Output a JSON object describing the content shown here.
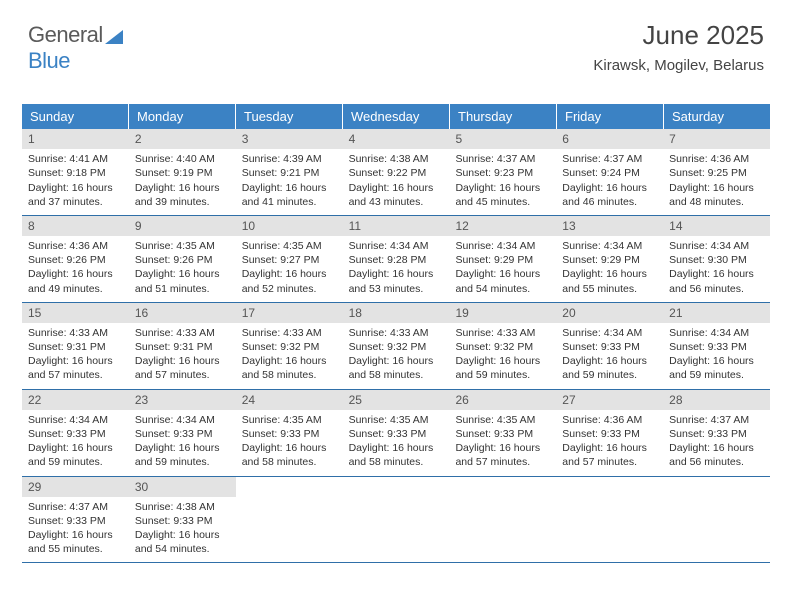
{
  "brand": {
    "part1": "General",
    "part2": "Blue"
  },
  "title": "June 2025",
  "location": "Kirawsk, Mogilev, Belarus",
  "colors": {
    "header_bg": "#3b82c4",
    "header_text": "#ffffff",
    "daynum_bg": "#e3e3e3",
    "week_border": "#2f6fa8",
    "body_text": "#333333",
    "brand_gray": "#5a5a5a",
    "brand_blue": "#3b82c4",
    "page_bg": "#ffffff"
  },
  "fonts": {
    "title_size_pt": 20,
    "location_size_pt": 11,
    "header_size_pt": 10,
    "daynum_size_pt": 9,
    "body_size_pt": 8
  },
  "weekdays": [
    "Sunday",
    "Monday",
    "Tuesday",
    "Wednesday",
    "Thursday",
    "Friday",
    "Saturday"
  ],
  "days": [
    {
      "n": "1",
      "sunrise": "4:41 AM",
      "sunset": "9:18 PM",
      "daylight": "16 hours and 37 minutes."
    },
    {
      "n": "2",
      "sunrise": "4:40 AM",
      "sunset": "9:19 PM",
      "daylight": "16 hours and 39 minutes."
    },
    {
      "n": "3",
      "sunrise": "4:39 AM",
      "sunset": "9:21 PM",
      "daylight": "16 hours and 41 minutes."
    },
    {
      "n": "4",
      "sunrise": "4:38 AM",
      "sunset": "9:22 PM",
      "daylight": "16 hours and 43 minutes."
    },
    {
      "n": "5",
      "sunrise": "4:37 AM",
      "sunset": "9:23 PM",
      "daylight": "16 hours and 45 minutes."
    },
    {
      "n": "6",
      "sunrise": "4:37 AM",
      "sunset": "9:24 PM",
      "daylight": "16 hours and 46 minutes."
    },
    {
      "n": "7",
      "sunrise": "4:36 AM",
      "sunset": "9:25 PM",
      "daylight": "16 hours and 48 minutes."
    },
    {
      "n": "8",
      "sunrise": "4:36 AM",
      "sunset": "9:26 PM",
      "daylight": "16 hours and 49 minutes."
    },
    {
      "n": "9",
      "sunrise": "4:35 AM",
      "sunset": "9:26 PM",
      "daylight": "16 hours and 51 minutes."
    },
    {
      "n": "10",
      "sunrise": "4:35 AM",
      "sunset": "9:27 PM",
      "daylight": "16 hours and 52 minutes."
    },
    {
      "n": "11",
      "sunrise": "4:34 AM",
      "sunset": "9:28 PM",
      "daylight": "16 hours and 53 minutes."
    },
    {
      "n": "12",
      "sunrise": "4:34 AM",
      "sunset": "9:29 PM",
      "daylight": "16 hours and 54 minutes."
    },
    {
      "n": "13",
      "sunrise": "4:34 AM",
      "sunset": "9:29 PM",
      "daylight": "16 hours and 55 minutes."
    },
    {
      "n": "14",
      "sunrise": "4:34 AM",
      "sunset": "9:30 PM",
      "daylight": "16 hours and 56 minutes."
    },
    {
      "n": "15",
      "sunrise": "4:33 AM",
      "sunset": "9:31 PM",
      "daylight": "16 hours and 57 minutes."
    },
    {
      "n": "16",
      "sunrise": "4:33 AM",
      "sunset": "9:31 PM",
      "daylight": "16 hours and 57 minutes."
    },
    {
      "n": "17",
      "sunrise": "4:33 AM",
      "sunset": "9:32 PM",
      "daylight": "16 hours and 58 minutes."
    },
    {
      "n": "18",
      "sunrise": "4:33 AM",
      "sunset": "9:32 PM",
      "daylight": "16 hours and 58 minutes."
    },
    {
      "n": "19",
      "sunrise": "4:33 AM",
      "sunset": "9:32 PM",
      "daylight": "16 hours and 59 minutes."
    },
    {
      "n": "20",
      "sunrise": "4:34 AM",
      "sunset": "9:33 PM",
      "daylight": "16 hours and 59 minutes."
    },
    {
      "n": "21",
      "sunrise": "4:34 AM",
      "sunset": "9:33 PM",
      "daylight": "16 hours and 59 minutes."
    },
    {
      "n": "22",
      "sunrise": "4:34 AM",
      "sunset": "9:33 PM",
      "daylight": "16 hours and 59 minutes."
    },
    {
      "n": "23",
      "sunrise": "4:34 AM",
      "sunset": "9:33 PM",
      "daylight": "16 hours and 59 minutes."
    },
    {
      "n": "24",
      "sunrise": "4:35 AM",
      "sunset": "9:33 PM",
      "daylight": "16 hours and 58 minutes."
    },
    {
      "n": "25",
      "sunrise": "4:35 AM",
      "sunset": "9:33 PM",
      "daylight": "16 hours and 58 minutes."
    },
    {
      "n": "26",
      "sunrise": "4:35 AM",
      "sunset": "9:33 PM",
      "daylight": "16 hours and 57 minutes."
    },
    {
      "n": "27",
      "sunrise": "4:36 AM",
      "sunset": "9:33 PM",
      "daylight": "16 hours and 57 minutes."
    },
    {
      "n": "28",
      "sunrise": "4:37 AM",
      "sunset": "9:33 PM",
      "daylight": "16 hours and 56 minutes."
    },
    {
      "n": "29",
      "sunrise": "4:37 AM",
      "sunset": "9:33 PM",
      "daylight": "16 hours and 55 minutes."
    },
    {
      "n": "30",
      "sunrise": "4:38 AM",
      "sunset": "9:33 PM",
      "daylight": "16 hours and 54 minutes."
    }
  ],
  "labels": {
    "sunrise_prefix": "Sunrise: ",
    "sunset_prefix": "Sunset: ",
    "daylight_prefix": "Daylight: "
  },
  "layout": {
    "columns": 7,
    "week_start": "Sunday",
    "first_day_column": 0,
    "trailing_empty_cells": 5
  }
}
